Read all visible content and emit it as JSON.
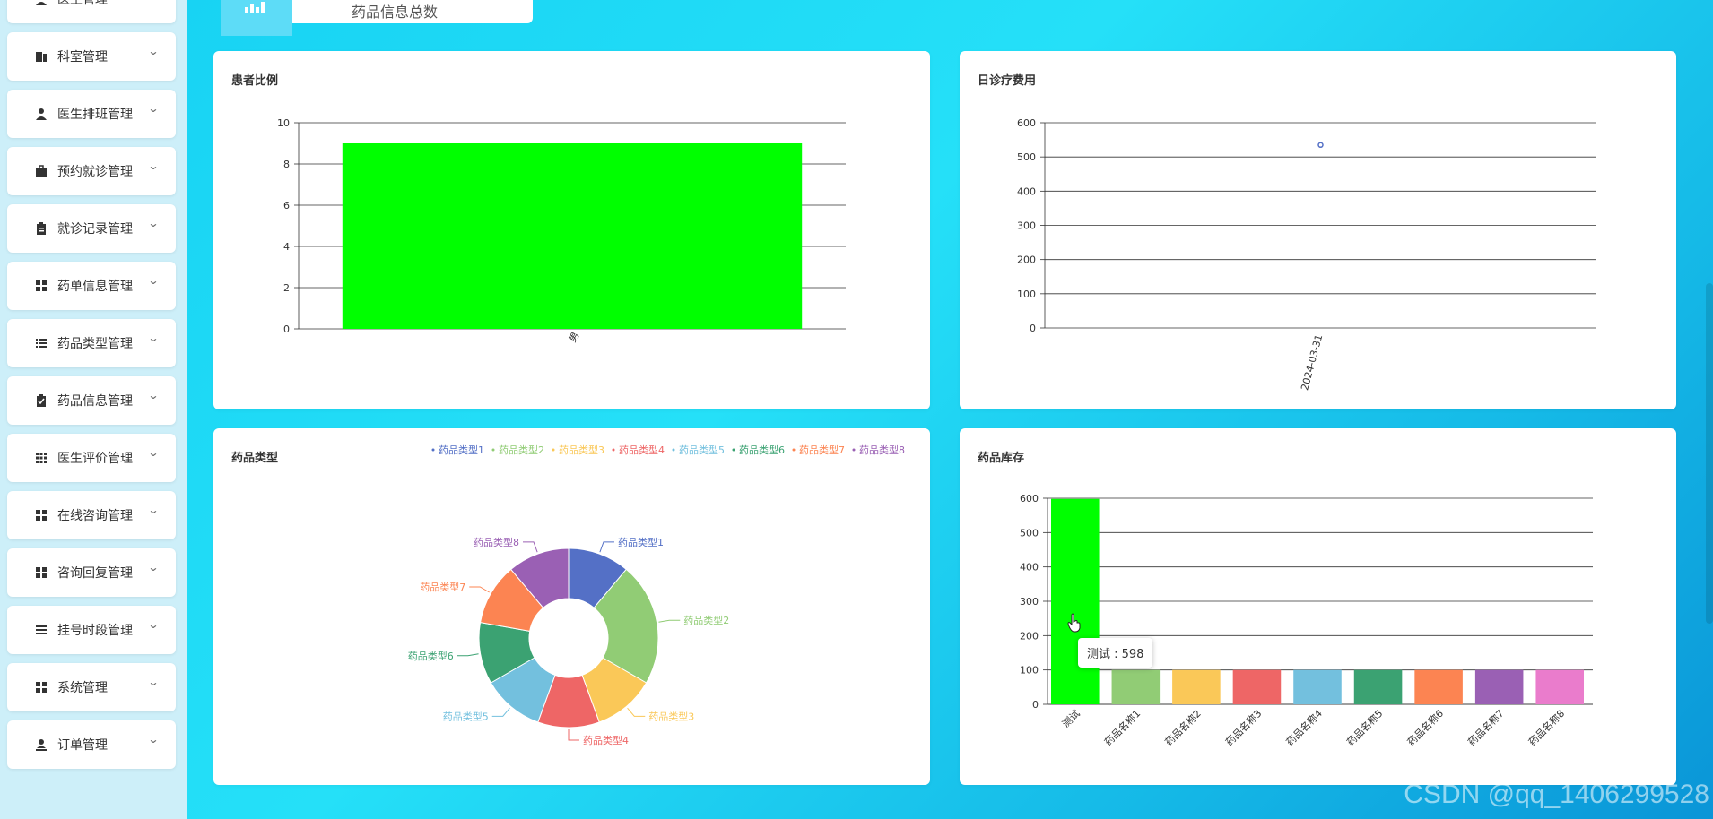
{
  "sidebar": {
    "items": [
      {
        "label": "医生管理",
        "icon": "user-icon"
      },
      {
        "label": "科室管理",
        "icon": "building-icon"
      },
      {
        "label": "医生排班管理",
        "icon": "person-icon"
      },
      {
        "label": "预约就诊管理",
        "icon": "briefcase-icon"
      },
      {
        "label": "就诊记录管理",
        "icon": "clipboard-icon"
      },
      {
        "label": "药单信息管理",
        "icon": "grid-icon"
      },
      {
        "label": "药品类型管理",
        "icon": "list-icon"
      },
      {
        "label": "药品信息管理",
        "icon": "clipboard-check-icon"
      },
      {
        "label": "医生评价管理",
        "icon": "apps-icon"
      },
      {
        "label": "在线咨询管理",
        "icon": "grid-icon"
      },
      {
        "label": "咨询回复管理",
        "icon": "grid-icon"
      },
      {
        "label": "挂号时段管理",
        "icon": "menu-icon"
      },
      {
        "label": "系统管理",
        "icon": "grid-icon"
      },
      {
        "label": "订单管理",
        "icon": "person-badge-icon"
      }
    ]
  },
  "top_card": {
    "label": "药品信息总数"
  },
  "panels": {
    "patient_ratio": {
      "title": "患者比例"
    },
    "daily_cost": {
      "title": "日诊疗费用"
    },
    "drug_type": {
      "title": "药品类型"
    },
    "drug_stock": {
      "title": "药品库存"
    }
  },
  "tooltip": {
    "text": "测试 : 598"
  },
  "watermark": "CSDN @qq_1406299528",
  "chart_data": [
    {
      "type": "bar",
      "title": "患者比例",
      "categories": [
        "男"
      ],
      "values": [
        9
      ],
      "ylim": [
        0,
        10
      ],
      "yticks": [
        0,
        2,
        4,
        6,
        8,
        10
      ],
      "colors": [
        "#00ff00"
      ],
      "grid": true
    },
    {
      "type": "scatter",
      "title": "日诊疗费用",
      "x": [
        "2024-03-31"
      ],
      "values": [
        535
      ],
      "ylim": [
        0,
        600
      ],
      "yticks": [
        0,
        100,
        200,
        300,
        400,
        500,
        600
      ],
      "colors": [
        "#5470c6"
      ],
      "grid": true
    },
    {
      "type": "pie",
      "title": "药品类型",
      "legend_position": "top-right",
      "categories": [
        "药品类型1",
        "药品类型2",
        "药品类型3",
        "药品类型4",
        "药品类型5",
        "药品类型6",
        "药品类型7",
        "药品类型8"
      ],
      "values": [
        1,
        2,
        1,
        1,
        1,
        1,
        1,
        1
      ],
      "colors": [
        "#5470c6",
        "#91cc75",
        "#fac858",
        "#ee6666",
        "#73c0de",
        "#3ba272",
        "#fc8452",
        "#9a60b4"
      ]
    },
    {
      "type": "bar",
      "title": "药品库存",
      "categories": [
        "测试",
        "药品名称1",
        "药品名称2",
        "药品名称3",
        "药品名称4",
        "药品名称5",
        "药品名称6",
        "药品名称7",
        "药品名称8"
      ],
      "values": [
        598,
        100,
        100,
        100,
        100,
        100,
        100,
        100,
        100
      ],
      "ylim": [
        0,
        600
      ],
      "yticks": [
        0,
        100,
        200,
        300,
        400,
        500,
        600
      ],
      "colors": [
        "#00ff00",
        "#91cc75",
        "#fac858",
        "#ee6666",
        "#73c0de",
        "#3ba272",
        "#fc8452",
        "#9a60b4",
        "#ea7ccc"
      ],
      "grid": true
    }
  ]
}
